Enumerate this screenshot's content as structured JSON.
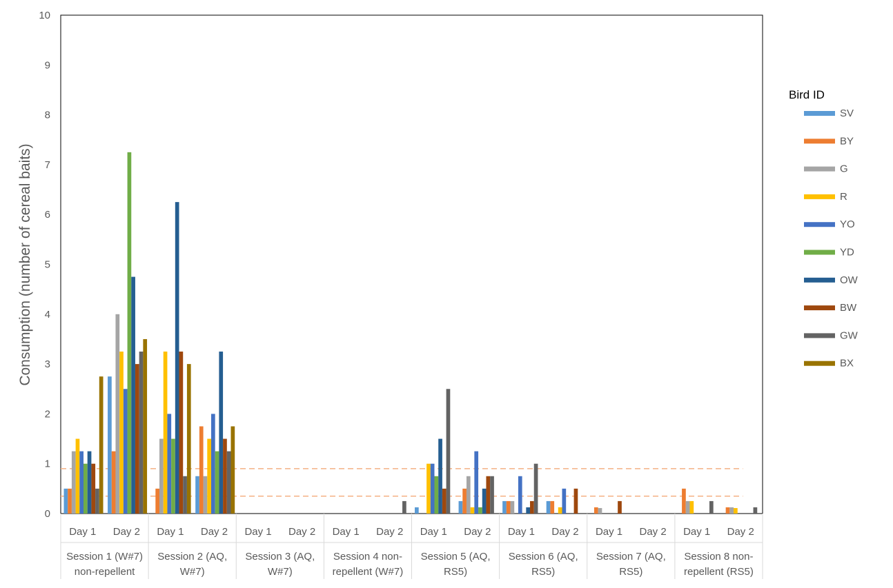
{
  "chart_data": {
    "type": "bar",
    "title": "",
    "xlabel": "",
    "ylabel": "Consumption (number of cereal baits)",
    "ylim": [
      0,
      10
    ],
    "yticks": [
      0,
      1,
      2,
      3,
      4,
      5,
      6,
      7,
      8,
      9,
      10
    ],
    "grid": false,
    "legend": {
      "title": "Bird ID",
      "position": "right"
    },
    "categories": [
      "Day 1",
      "Day 2",
      "Day 1",
      "Day 2",
      "Day 1",
      "Day 2",
      "Day 1",
      "Day 2",
      "Day 1",
      "Day 2",
      "Day 1",
      "Day 2",
      "Day 1",
      "Day 2",
      "Day 1",
      "Day 2"
    ],
    "groups": [
      {
        "label_lines": [
          "Session 1 (W#7)",
          "non-repellent"
        ]
      },
      {
        "label_lines": [
          "Session 2 (AQ,",
          "W#7)"
        ]
      },
      {
        "label_lines": [
          "Session 3 (AQ,",
          "W#7)"
        ]
      },
      {
        "label_lines": [
          "Session 4 non-",
          "repellent (W#7)"
        ]
      },
      {
        "label_lines": [
          "Session 5 (AQ,",
          "RS5)"
        ]
      },
      {
        "label_lines": [
          "Session 6 (AQ,",
          "RS5)"
        ]
      },
      {
        "label_lines": [
          "Session 7 (AQ,",
          "RS5)"
        ]
      },
      {
        "label_lines": [
          "Session 8 non-",
          "repellent (RS5)"
        ]
      }
    ],
    "series": [
      {
        "name": "SV",
        "color": "#5B9BD5",
        "values": [
          0.5,
          2.75,
          0,
          0.75,
          0,
          0,
          0,
          0,
          0.125,
          0.25,
          0.25,
          0.25,
          0,
          0,
          0,
          0
        ]
      },
      {
        "name": "BY",
        "color": "#ED7D31",
        "values": [
          0.5,
          1.25,
          0.5,
          1.75,
          0,
          0,
          0,
          0,
          0,
          0.5,
          0.25,
          0.25,
          0.125,
          0,
          0.5,
          0.125
        ]
      },
      {
        "name": "G",
        "color": "#A5A5A5",
        "values": [
          1.25,
          4.0,
          1.5,
          0.75,
          0,
          0,
          0,
          0,
          0,
          0.75,
          0.25,
          0,
          0.11,
          0,
          0.25,
          0.125
        ]
      },
      {
        "name": "R",
        "color": "#FFC000",
        "values": [
          1.5,
          3.25,
          3.25,
          1.5,
          0,
          0,
          0,
          0,
          1.0,
          0.125,
          0,
          0.125,
          0,
          0,
          0.25,
          0.11
        ]
      },
      {
        "name": "YO",
        "color": "#4472C4",
        "values": [
          1.25,
          2.5,
          2.0,
          2.0,
          0,
          0,
          0,
          0,
          1.0,
          1.25,
          0.75,
          0.5,
          0,
          0,
          0,
          0
        ]
      },
      {
        "name": "YD",
        "color": "#70AD47",
        "values": [
          1.0,
          7.25,
          1.5,
          1.25,
          0,
          0,
          0,
          0,
          0.75,
          0.125,
          0,
          0,
          0,
          0,
          0,
          0
        ]
      },
      {
        "name": "OW",
        "color": "#255E91",
        "values": [
          1.25,
          4.75,
          6.25,
          3.25,
          0,
          0,
          0,
          0,
          1.5,
          0.5,
          0.125,
          0,
          0,
          0,
          0,
          0
        ]
      },
      {
        "name": "BW",
        "color": "#9E480E",
        "values": [
          1.0,
          3.0,
          3.25,
          1.5,
          0,
          0,
          0,
          0,
          0.5,
          0.75,
          0.25,
          0.5,
          0.25,
          0,
          0,
          0
        ]
      },
      {
        "name": "GW",
        "color": "#636363",
        "values": [
          0.5,
          3.25,
          0.75,
          1.25,
          0,
          0,
          0,
          0.25,
          2.5,
          0.75,
          1.0,
          0,
          0,
          0,
          0.25,
          0.125
        ]
      },
      {
        "name": "BX",
        "color": "#997300",
        "values": [
          2.75,
          3.5,
          3.0,
          1.75,
          0,
          0,
          0,
          0,
          0,
          0,
          0,
          0,
          0,
          0,
          0,
          0
        ]
      }
    ],
    "reference_lines": [
      {
        "y": 0.35,
        "color": "#F4B183",
        "style": "dashed"
      },
      {
        "y": 0.9,
        "color": "#F4B183",
        "style": "dashed"
      }
    ]
  }
}
